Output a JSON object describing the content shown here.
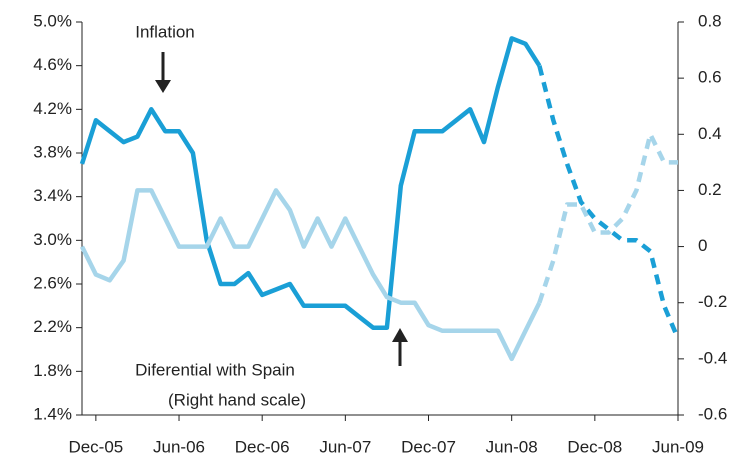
{
  "chart_data": {
    "type": "line",
    "annotations": [
      "Inflation",
      "Diferential with Spain",
      "(Right hand scale)"
    ],
    "categories": [
      null,
      "Dec-05",
      null,
      null,
      null,
      null,
      null,
      "Jun-06",
      null,
      null,
      null,
      null,
      null,
      "Dec-06",
      null,
      null,
      null,
      null,
      null,
      "Jun-07",
      null,
      null,
      null,
      null,
      null,
      "Dec-07",
      null,
      null,
      null,
      null,
      null,
      "Jun-08",
      null,
      null,
      null,
      null,
      null,
      "Dec-08",
      null,
      null,
      null,
      null,
      null,
      "Jun-09"
    ],
    "series": [
      {
        "color": "#1a9fd6",
        "axis": "y",
        "dashed_from": 33,
        "values": [
          3.7,
          4.1,
          4.0,
          3.9,
          3.95,
          4.2,
          4.0,
          4.0,
          3.8,
          3.0,
          2.6,
          2.6,
          2.7,
          2.5,
          2.55,
          2.6,
          2.4,
          2.4,
          2.4,
          2.4,
          2.3,
          2.2,
          2.2,
          3.5,
          4.0,
          4.0,
          4.0,
          4.1,
          4.2,
          3.9,
          4.4,
          4.85,
          4.8,
          4.6,
          4.1,
          3.7,
          3.35,
          3.2,
          3.1,
          3.0,
          3.0,
          2.9,
          2.4,
          2.1
        ]
      },
      {
        "color": "#a6d5ea",
        "axis": "y2",
        "dashed_from": 33,
        "values": [
          0.0,
          -0.1,
          -0.12,
          -0.05,
          0.2,
          0.2,
          0.1,
          0.0,
          0.0,
          0.0,
          0.1,
          0.0,
          0.0,
          0.1,
          0.2,
          0.13,
          0.0,
          0.1,
          0.0,
          0.1,
          0.0,
          -0.1,
          -0.18,
          -0.2,
          -0.2,
          -0.28,
          -0.3,
          -0.3,
          -0.3,
          -0.3,
          -0.3,
          -0.4,
          -0.3,
          -0.2,
          -0.05,
          0.15,
          0.15,
          0.05,
          0.05,
          0.1,
          0.2,
          0.4,
          0.3,
          0.3
        ]
      }
    ],
    "ylim": [
      1.4,
      5.0
    ],
    "yticks": [
      {
        "value": 1.4,
        "label": "1.4%"
      },
      {
        "value": 1.8,
        "label": "1.8%"
      },
      {
        "value": 2.2,
        "label": "2.2%"
      },
      {
        "value": 2.6,
        "label": "2.6%"
      },
      {
        "value": 3.0,
        "label": "3.0%"
      },
      {
        "value": 3.4,
        "label": "3.4%"
      },
      {
        "value": 3.8,
        "label": "3.8%"
      },
      {
        "value": 4.2,
        "label": "4.2%"
      },
      {
        "value": 4.6,
        "label": "4.6%"
      },
      {
        "value": 5.0,
        "label": "5.0%"
      }
    ],
    "y2lim": [
      -0.6,
      0.8
    ],
    "y2ticks": [
      -0.6,
      -0.4,
      -0.2,
      0,
      0.2,
      0.4,
      0.6,
      0.8
    ]
  }
}
